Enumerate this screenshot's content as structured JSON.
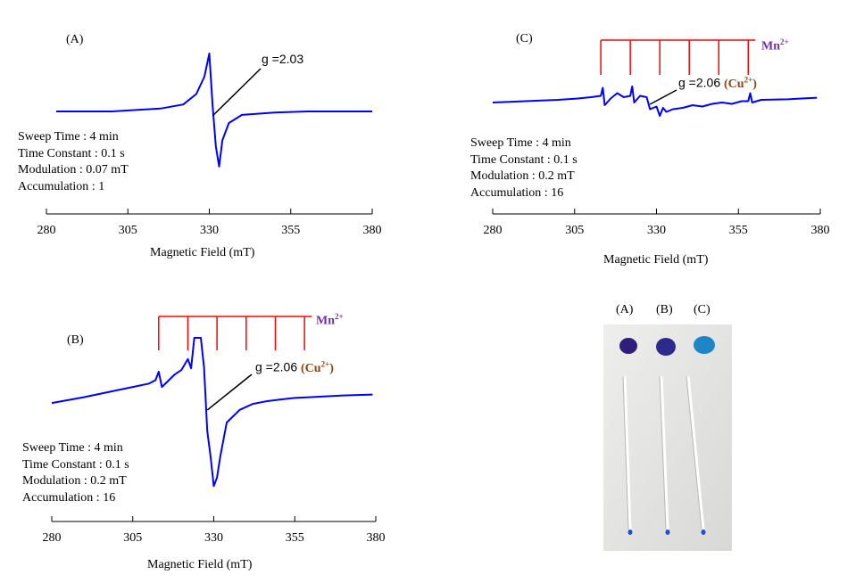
{
  "chart_data": [
    {
      "panel": "(A)",
      "type": "line",
      "xlabel": "Magnetic Field (mT)",
      "ylabel": "",
      "xlim": [
        280,
        380
      ],
      "xticks": [
        280,
        305,
        330,
        355,
        380
      ],
      "grid": false,
      "series": [
        {
          "x": [
            283,
            300,
            315,
            322,
            326,
            328.5,
            330,
            331,
            332,
            333,
            334,
            336,
            340,
            350,
            360,
            380
          ],
          "y": [
            0,
            0,
            0.05,
            0.12,
            0.3,
            0.6,
            1.0,
            0.1,
            -0.6,
            -0.95,
            -0.5,
            -0.2,
            -0.06,
            -0.02,
            0,
            0
          ]
        }
      ],
      "annotation": "g =2.03",
      "parameters": [
        "Sweep Time : 4 min",
        "Time Constant : 0.1 s",
        "Modulation : 0.07 mT",
        "Accumulation : 1"
      ]
    },
    {
      "panel": "(B)",
      "type": "line",
      "xlabel": "Magnetic Field (mT)",
      "ylabel": "",
      "xlim": [
        280,
        380
      ],
      "xticks": [
        280,
        305,
        330,
        355,
        380
      ],
      "grid": false,
      "series": [
        {
          "x": [
            280,
            290,
            300,
            305,
            310,
            312,
            313,
            314,
            318,
            320,
            322,
            323,
            324,
            326,
            327,
            328,
            329,
            330,
            331,
            332,
            333,
            334,
            338,
            342,
            346,
            350,
            355,
            360,
            370,
            379
          ],
          "y": [
            0.03,
            0.1,
            0.18,
            0.22,
            0.26,
            0.3,
            0.4,
            0.22,
            0.37,
            0.42,
            0.55,
            0.44,
            0.8,
            0.8,
            0.45,
            -0.3,
            -0.6,
            -0.95,
            -0.85,
            -0.6,
            -0.4,
            -0.2,
            -0.05,
            0.02,
            0.05,
            0.07,
            0.09,
            0.1,
            0.12,
            0.13
          ]
        }
      ],
      "annotation": "g =2.06",
      "annotation_ion": "(Cu²⁺)",
      "mn_label": "Mn²⁺",
      "mn_lines": [
        313,
        322,
        331,
        340,
        349,
        358
      ],
      "parameters": [
        "Sweep Time : 4 min",
        "Time Constant : 0.1 s",
        "Modulation : 0.2 mT",
        "Accumulation : 16"
      ]
    },
    {
      "panel": "(C)",
      "type": "line",
      "xlabel": "Magnetic Field (mT)",
      "ylabel": "",
      "xlim": [
        280,
        380
      ],
      "xticks": [
        280,
        305,
        330,
        355,
        380
      ],
      "grid": false,
      "series": [
        {
          "x": [
            280,
            290,
            300,
            306,
            310,
            313,
            313.6,
            314.2,
            316,
            318,
            320,
            322,
            322.6,
            323.2,
            325,
            327,
            328,
            330,
            331,
            332,
            333,
            335,
            338,
            341,
            344,
            347,
            350,
            353,
            356,
            358,
            358.6,
            359.2,
            362,
            370,
            379
          ],
          "y": [
            -0.1,
            -0.05,
            0,
            0.05,
            0.1,
            0.15,
            0.45,
            -0.2,
            0.05,
            0.25,
            0.1,
            0.15,
            0.5,
            -0.1,
            0.15,
            0.1,
            -0.35,
            -0.25,
            -0.6,
            -0.3,
            -0.45,
            -0.35,
            -0.3,
            -0.2,
            -0.25,
            -0.15,
            -0.1,
            -0.15,
            -0.05,
            -0.05,
            0.25,
            -0.1,
            0,
            0.02,
            0.08
          ]
        }
      ],
      "annotation": "g =2.06",
      "annotation_ion": "(Cu²⁺)",
      "mn_label": "Mn²⁺",
      "mn_lines": [
        313,
        322,
        331,
        340,
        349,
        358
      ],
      "parameters": [
        "Sweep Time : 4 min",
        "Time Constant : 0.1 s",
        "Modulation : 0.2 mT",
        "Accumulation : 16"
      ]
    }
  ],
  "photo": {
    "labels": [
      "(A)",
      "(B)",
      "(C)"
    ],
    "colors": [
      "#2f1f7a",
      "#2c2a8f",
      "#1e86c4"
    ]
  },
  "colors": {
    "trace": "#0000ff",
    "mn_marker": "#ff0000",
    "mn_label": "#7030A0",
    "cu_label": "#8B4513"
  }
}
